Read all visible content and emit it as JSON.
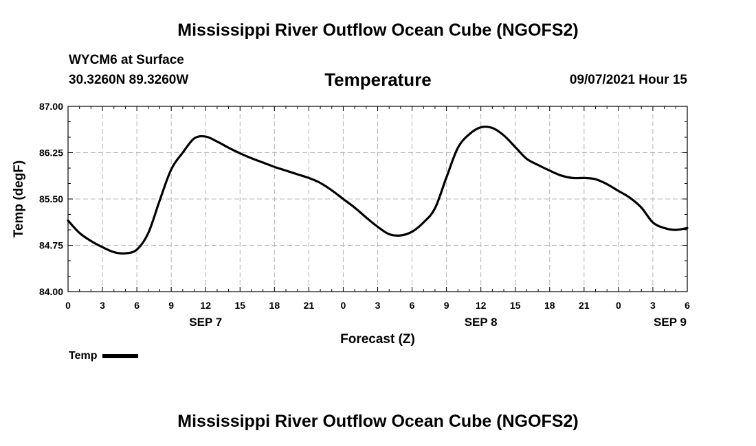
{
  "page": {
    "title_top": "Mississippi River Outflow Ocean Cube (NGOFS2)",
    "title_bottom": "Mississippi River Outflow Ocean Cube (NGOFS2)",
    "station": "WYCM6 at Surface",
    "coords": "30.3260N  89.3260W",
    "datetime": "09/07/2021 Hour 15"
  },
  "chart_data": {
    "type": "line",
    "title": "Temperature",
    "xlabel": "Forecast (Z)",
    "ylabel": "Temp (degF)",
    "ylim": [
      84.0,
      87.0
    ],
    "xlim": [
      0,
      54
    ],
    "yticks": [
      "84.00",
      "84.75",
      "85.50",
      "86.25",
      "87.00"
    ],
    "yticks_values": [
      84.0,
      84.75,
      85.5,
      86.25,
      87.0
    ],
    "xticks_hours": [
      0,
      3,
      6,
      9,
      12,
      15,
      18,
      21,
      24,
      27,
      30,
      33,
      36,
      39,
      42,
      45,
      48,
      51,
      54
    ],
    "xtick_labels": [
      "0",
      "3",
      "6",
      "9",
      "12",
      "15",
      "18",
      "21",
      "0",
      "3",
      "6",
      "9",
      "12",
      "15",
      "18",
      "21",
      "0",
      "3",
      "6"
    ],
    "day_labels": [
      {
        "hour": 12,
        "label": "SEP 7"
      },
      {
        "hour": 36,
        "label": "SEP 8"
      },
      {
        "hour": 52.5,
        "label": "SEP 9"
      }
    ],
    "grid": true,
    "legend": {
      "label": "Temp",
      "position": "bottom-left"
    },
    "series": [
      {
        "name": "Temp",
        "color": "#000000",
        "x": [
          0,
          1,
          2,
          3,
          4,
          5,
          6,
          7,
          8,
          9,
          10,
          11,
          12,
          13,
          14,
          15,
          16,
          17,
          18,
          19,
          20,
          21,
          22,
          23,
          24,
          25,
          26,
          27,
          28,
          29,
          30,
          31,
          32,
          33,
          34,
          35,
          36,
          37,
          38,
          39,
          40,
          41,
          42,
          43,
          44,
          45,
          46,
          47,
          48,
          49,
          50,
          51,
          52,
          53,
          54
        ],
        "values": [
          85.15,
          84.95,
          84.82,
          84.72,
          84.64,
          84.62,
          84.68,
          84.95,
          85.48,
          85.98,
          86.25,
          86.48,
          86.51,
          86.43,
          86.33,
          86.24,
          86.16,
          86.09,
          86.02,
          85.96,
          85.9,
          85.84,
          85.76,
          85.64,
          85.5,
          85.36,
          85.2,
          85.05,
          84.93,
          84.91,
          84.97,
          85.12,
          85.35,
          85.85,
          86.33,
          86.55,
          86.66,
          86.65,
          86.53,
          86.34,
          86.15,
          86.05,
          85.96,
          85.88,
          85.84,
          85.84,
          85.82,
          85.74,
          85.63,
          85.52,
          85.36,
          85.12,
          85.03,
          85.0,
          85.03
        ]
      }
    ]
  }
}
